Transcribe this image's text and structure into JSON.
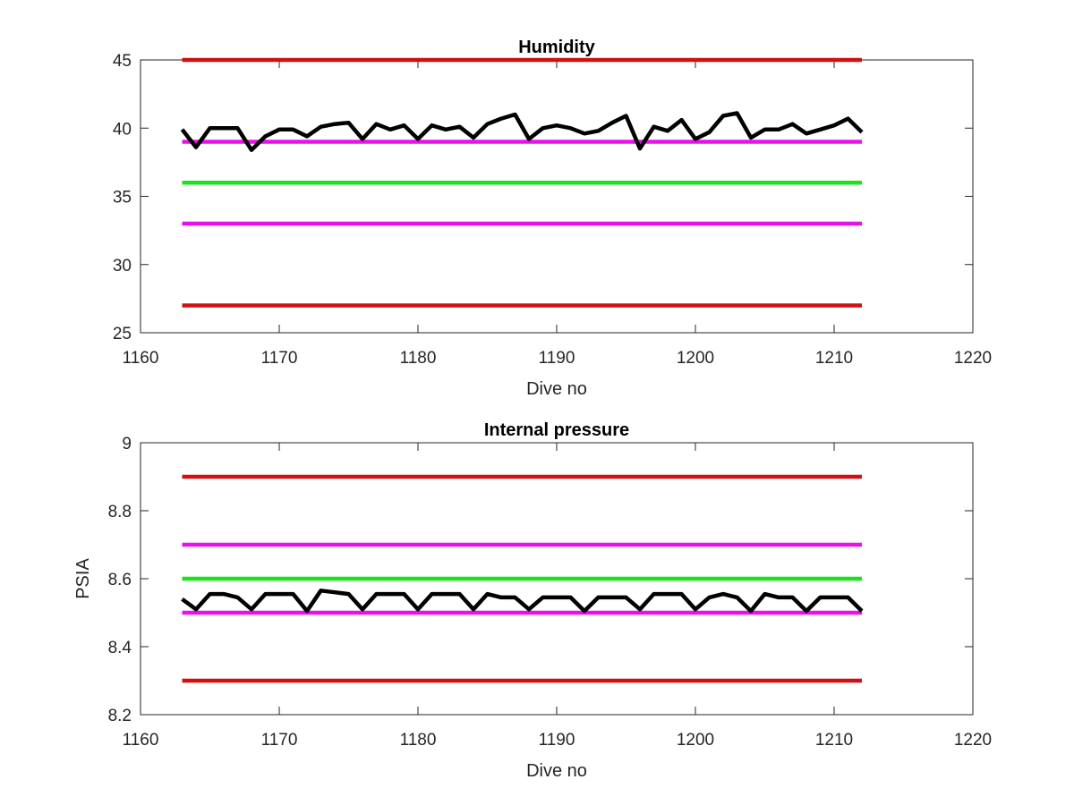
{
  "chart_data": [
    {
      "type": "line",
      "title": "Humidity",
      "xlabel": "Dive no",
      "ylabel": "",
      "xlim": [
        1160,
        1220
      ],
      "ylim": [
        25,
        45
      ],
      "xticks": [
        1160,
        1170,
        1180,
        1190,
        1200,
        1210,
        1220
      ],
      "yticks": [
        25,
        30,
        35,
        40,
        45
      ],
      "grid": false,
      "series": [
        {
          "color": "#d01010",
          "x": [
            1163,
            1212
          ],
          "values": [
            45,
            45
          ]
        },
        {
          "color": "#ea10ea",
          "x": [
            1163,
            1212
          ],
          "values": [
            39,
            39
          ]
        },
        {
          "color": "#1ee01e",
          "x": [
            1163,
            1212
          ],
          "values": [
            36,
            36
          ]
        },
        {
          "color": "#ea10ea",
          "x": [
            1163,
            1212
          ],
          "values": [
            33,
            33
          ]
        },
        {
          "color": "#d01010",
          "x": [
            1163,
            1212
          ],
          "values": [
            27,
            27
          ]
        },
        {
          "color": "#000000",
          "x": [
            1163,
            1164,
            1165,
            1166,
            1167,
            1168,
            1169,
            1170,
            1171,
            1172,
            1173,
            1174,
            1175,
            1176,
            1177,
            1178,
            1179,
            1180,
            1181,
            1182,
            1183,
            1184,
            1185,
            1186,
            1187,
            1188,
            1189,
            1190,
            1191,
            1192,
            1193,
            1194,
            1195,
            1196,
            1197,
            1198,
            1199,
            1200,
            1201,
            1202,
            1203,
            1204,
            1205,
            1206,
            1207,
            1208,
            1209,
            1210,
            1211,
            1212
          ],
          "values": [
            39.9,
            38.6,
            40.0,
            40.0,
            40.0,
            38.4,
            39.4,
            39.9,
            39.9,
            39.4,
            40.1,
            40.3,
            40.4,
            39.2,
            40.3,
            39.9,
            40.2,
            39.2,
            40.2,
            39.9,
            40.1,
            39.3,
            40.3,
            40.7,
            41.0,
            39.2,
            40.0,
            40.2,
            40.0,
            39.6,
            39.8,
            40.4,
            40.9,
            38.5,
            40.1,
            39.8,
            40.6,
            39.2,
            39.7,
            40.9,
            41.1,
            39.3,
            39.9,
            39.9,
            40.3,
            39.6,
            39.9,
            40.2,
            40.7,
            39.7
          ]
        }
      ]
    },
    {
      "type": "line",
      "title": "Internal pressure",
      "xlabel": "Dive no",
      "ylabel": "PSIA",
      "xlim": [
        1160,
        1220
      ],
      "ylim": [
        8.2,
        9
      ],
      "xticks": [
        1160,
        1170,
        1180,
        1190,
        1200,
        1210,
        1220
      ],
      "yticks": [
        8.2,
        8.4,
        8.6,
        8.8,
        9
      ],
      "grid": false,
      "series": [
        {
          "color": "#d01010",
          "x": [
            1163,
            1212
          ],
          "values": [
            8.9,
            8.9
          ]
        },
        {
          "color": "#ea10ea",
          "x": [
            1163,
            1212
          ],
          "values": [
            8.7,
            8.7
          ]
        },
        {
          "color": "#1ee01e",
          "x": [
            1163,
            1212
          ],
          "values": [
            8.6,
            8.6
          ]
        },
        {
          "color": "#ea10ea",
          "x": [
            1163,
            1212
          ],
          "values": [
            8.5,
            8.5
          ]
        },
        {
          "color": "#d01010",
          "x": [
            1163,
            1212
          ],
          "values": [
            8.3,
            8.3
          ]
        },
        {
          "color": "#000000",
          "x": [
            1163,
            1164,
            1165,
            1166,
            1167,
            1168,
            1169,
            1170,
            1171,
            1172,
            1173,
            1174,
            1175,
            1176,
            1177,
            1178,
            1179,
            1180,
            1181,
            1182,
            1183,
            1184,
            1185,
            1186,
            1187,
            1188,
            1189,
            1190,
            1191,
            1192,
            1193,
            1194,
            1195,
            1196,
            1197,
            1198,
            1199,
            1200,
            1201,
            1202,
            1203,
            1204,
            1205,
            1206,
            1207,
            1208,
            1209,
            1210,
            1211,
            1212
          ],
          "values": [
            8.54,
            8.51,
            8.555,
            8.555,
            8.545,
            8.51,
            8.555,
            8.555,
            8.555,
            8.505,
            8.565,
            8.56,
            8.555,
            8.51,
            8.555,
            8.555,
            8.555,
            8.51,
            8.555,
            8.555,
            8.555,
            8.51,
            8.555,
            8.545,
            8.545,
            8.51,
            8.545,
            8.545,
            8.545,
            8.505,
            8.545,
            8.545,
            8.545,
            8.51,
            8.555,
            8.555,
            8.555,
            8.51,
            8.545,
            8.555,
            8.545,
            8.505,
            8.555,
            8.545,
            8.545,
            8.505,
            8.545,
            8.545,
            8.545,
            8.505
          ]
        }
      ]
    }
  ]
}
